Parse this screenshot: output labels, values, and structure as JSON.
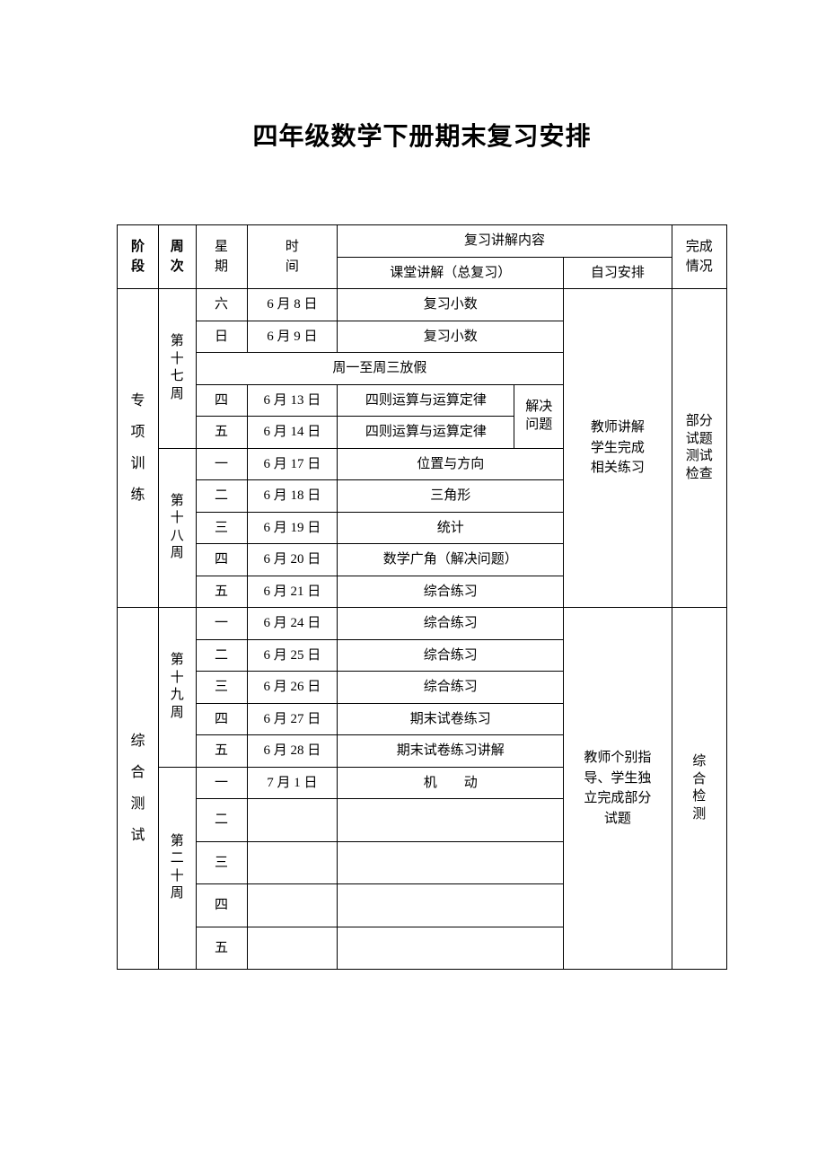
{
  "title": "四年级数学下册期末复习安排",
  "headers": {
    "stage": "阶\n段",
    "week": "周\n次",
    "day": "星\n期",
    "date": "时\n间",
    "content": "复习讲解内容",
    "class_lecture": "课堂讲解（总复习）",
    "self_study": "自习安排",
    "completion": "完成\n情况"
  },
  "stages": {
    "special": "专\n项\n训\n练",
    "comprehensive": "综\n合\n测\n试"
  },
  "weeks": {
    "w17": "第\n十\n七\n周",
    "w18": "第\n十\n八\n周",
    "w19": "第\n十\n九\n周",
    "w20": "第\n二\n十\n周"
  },
  "holiday_note": "周一至周三放假",
  "self_study_notes": {
    "special": "教师讲解\n学生完成\n相关练习",
    "comprehensive": "教师个别指\n导、学生独\n立完成部分\n试题"
  },
  "completion_notes": {
    "special": "部分\n试题\n测试\n检查",
    "comprehensive": "综\n合\n检\n测"
  },
  "problem_solving": "解决\n问题",
  "rows": {
    "r1": {
      "day": "六",
      "date": "6 月 8 日",
      "content": "复习小数"
    },
    "r2": {
      "day": "日",
      "date": "6 月 9 日",
      "content": "复习小数"
    },
    "r3": {
      "day": "四",
      "date": "6 月 13 日",
      "content": "四则运算与运算定律"
    },
    "r4": {
      "day": "五",
      "date": "6 月 14 日",
      "content": "四则运算与运算定律"
    },
    "r5": {
      "day": "一",
      "date": "6 月 17 日",
      "content": "位置与方向"
    },
    "r6": {
      "day": "二",
      "date": "6 月 18 日",
      "content": "三角形"
    },
    "r7": {
      "day": "三",
      "date": "6 月 19 日",
      "content": "统计"
    },
    "r8": {
      "day": "四",
      "date": "6 月 20 日",
      "content": "数学广角（解决问题）"
    },
    "r9": {
      "day": "五",
      "date": "6 月 21 日",
      "content": "综合练习"
    },
    "r10": {
      "day": "一",
      "date": "6 月 24 日",
      "content": "综合练习"
    },
    "r11": {
      "day": "二",
      "date": "6 月 25 日",
      "content": "综合练习"
    },
    "r12": {
      "day": "三",
      "date": "6 月 26 日",
      "content": "综合练习"
    },
    "r13": {
      "day": "四",
      "date": "6 月 27 日",
      "content": "期末试卷练习"
    },
    "r14": {
      "day": "五",
      "date": "6 月 28 日",
      "content": "期末试卷练习讲解"
    },
    "r15": {
      "day": "一",
      "date": "7 月 1 日",
      "content": "机　　动"
    },
    "r16": {
      "day": "二",
      "date": "",
      "content": ""
    },
    "r17": {
      "day": "三",
      "date": "",
      "content": ""
    },
    "r18": {
      "day": "四",
      "date": "",
      "content": ""
    },
    "r19": {
      "day": "五",
      "date": "",
      "content": ""
    }
  }
}
